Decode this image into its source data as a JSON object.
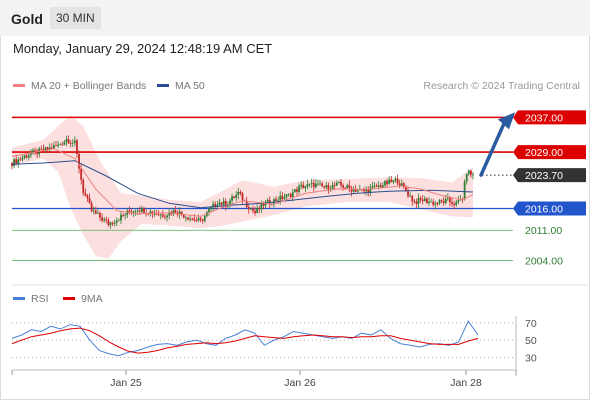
{
  "header": {
    "instrument": "Gold",
    "timeframe": "30 MIN"
  },
  "datetime": "Monday, January 29, 2024 12:48:19 AM CET",
  "credit": "Research © 2024 Trading Central",
  "legend_price": [
    {
      "label": "MA 20 + Bollinger Bands",
      "color": "#f08080"
    },
    {
      "label": "MA 50",
      "color": "#2a4d8f"
    }
  ],
  "legend_rsi": [
    {
      "label": "RSI",
      "color": "#4a7fd8"
    },
    {
      "label": "9MA",
      "color": "#e00000"
    }
  ],
  "colors": {
    "resistance": "#dd0000",
    "support_blue": "#2255cc",
    "support_green": "#4caf50",
    "current": "#333333",
    "candle_up": "#2e7d32",
    "candle_down": "#c62828",
    "bollinger_fill": "#fbdada",
    "arrow": "#2a5a9f"
  },
  "chart_data": [
    {
      "type": "line",
      "subtype": "candlestick",
      "title": "",
      "x_labels": [
        "Jan 25",
        "Jan 26",
        "Jan 28"
      ],
      "ylim": [
        2000,
        2041
      ],
      "levels": [
        {
          "value": 2037.0,
          "label": "2037.00",
          "kind": "resistance"
        },
        {
          "value": 2029.0,
          "label": "2029.00",
          "kind": "resistance"
        },
        {
          "value": 2023.7,
          "label": "2023.70",
          "kind": "current"
        },
        {
          "value": 2016.0,
          "label": "2016.00",
          "kind": "pivot"
        },
        {
          "value": 2011.0,
          "label": "2011.00",
          "kind": "support"
        },
        {
          "value": 2004.0,
          "label": "2004.00",
          "kind": "support"
        }
      ],
      "price_path": [
        [
          0,
          2026.5
        ],
        [
          8,
          2028.5
        ],
        [
          16,
          2029.5
        ],
        [
          22,
          2030.5
        ],
        [
          26,
          2032.0
        ],
        [
          30,
          2031.0
        ],
        [
          34,
          2020.0
        ],
        [
          38,
          2015.5
        ],
        [
          42,
          2014.0
        ],
        [
          46,
          2012.5
        ],
        [
          50,
          2013.5
        ],
        [
          55,
          2015.0
        ],
        [
          60,
          2016.0
        ],
        [
          66,
          2015.2
        ],
        [
          72,
          2014.5
        ],
        [
          78,
          2015.5
        ],
        [
          84,
          2014.0
        ],
        [
          90,
          2013.0
        ],
        [
          94,
          2015.5
        ],
        [
          98,
          2017.5
        ],
        [
          102,
          2017.0
        ],
        [
          108,
          2019.5
        ],
        [
          112,
          2017.0
        ],
        [
          116,
          2015.0
        ],
        [
          120,
          2017.0
        ],
        [
          126,
          2018.0
        ],
        [
          132,
          2019.0
        ],
        [
          138,
          2021.0
        ],
        [
          144,
          2021.5
        ],
        [
          150,
          2020.8
        ],
        [
          156,
          2021.5
        ],
        [
          162,
          2020.5
        ],
        [
          168,
          2020.0
        ],
        [
          174,
          2021.0
        ],
        [
          180,
          2022.0
        ],
        [
          184,
          2022.5
        ],
        [
          188,
          2020.0
        ],
        [
          192,
          2017.5
        ],
        [
          196,
          2018.0
        ],
        [
          202,
          2017.2
        ],
        [
          208,
          2017.8
        ],
        [
          212,
          2017.0
        ],
        [
          215,
          2018.5
        ],
        [
          217,
          2024.5
        ],
        [
          220,
          2023.7
        ]
      ],
      "ma20_path": [
        [
          0,
          2028.0
        ],
        [
          20,
          2029.8
        ],
        [
          30,
          2027.5
        ],
        [
          40,
          2020.5
        ],
        [
          50,
          2015.5
        ],
        [
          60,
          2014.8
        ],
        [
          75,
          2015.0
        ],
        [
          90,
          2014.2
        ],
        [
          100,
          2016.2
        ],
        [
          110,
          2017.8
        ],
        [
          125,
          2017.0
        ],
        [
          140,
          2019.5
        ],
        [
          155,
          2020.5
        ],
        [
          170,
          2020.4
        ],
        [
          185,
          2021.2
        ],
        [
          195,
          2020.5
        ],
        [
          205,
          2019.0
        ],
        [
          215,
          2018.0
        ],
        [
          220,
          2019.2
        ]
      ],
      "ma50_path": [
        [
          0,
          2026.2
        ],
        [
          15,
          2026.5
        ],
        [
          30,
          2027.0
        ],
        [
          45,
          2023.5
        ],
        [
          60,
          2019.5
        ],
        [
          75,
          2017.2
        ],
        [
          90,
          2016.2
        ],
        [
          105,
          2016.8
        ],
        [
          120,
          2017.2
        ],
        [
          135,
          2018.0
        ],
        [
          150,
          2018.8
        ],
        [
          165,
          2019.5
        ],
        [
          180,
          2020.0
        ],
        [
          200,
          2020.2
        ],
        [
          220,
          2019.8
        ]
      ],
      "bollinger_upper": [
        [
          0,
          2030.0
        ],
        [
          15,
          2031.8
        ],
        [
          22,
          2035.0
        ],
        [
          28,
          2037.5
        ],
        [
          34,
          2035.0
        ],
        [
          42,
          2027.0
        ],
        [
          52,
          2019.5
        ],
        [
          62,
          2019.0
        ],
        [
          76,
          2018.0
        ],
        [
          90,
          2017.5
        ],
        [
          100,
          2020.0
        ],
        [
          110,
          2022.5
        ],
        [
          125,
          2021.0
        ],
        [
          140,
          2022.5
        ],
        [
          160,
          2022.8
        ],
        [
          180,
          2023.2
        ],
        [
          195,
          2023.0
        ],
        [
          210,
          2022.0
        ],
        [
          220,
          2025.5
        ]
      ],
      "bollinger_lower": [
        [
          0,
          2026.0
        ],
        [
          15,
          2027.5
        ],
        [
          22,
          2024.5
        ],
        [
          28,
          2016.0
        ],
        [
          34,
          2010.0
        ],
        [
          40,
          2005.0
        ],
        [
          46,
          2004.5
        ],
        [
          52,
          2008.5
        ],
        [
          62,
          2012.5
        ],
        [
          76,
          2012.0
        ],
        [
          90,
          2011.5
        ],
        [
          100,
          2012.0
        ],
        [
          110,
          2013.0
        ],
        [
          125,
          2014.5
        ],
        [
          140,
          2016.5
        ],
        [
          160,
          2017.5
        ],
        [
          180,
          2017.5
        ],
        [
          195,
          2015.8
        ],
        [
          210,
          2014.2
        ],
        [
          220,
          2014.0
        ]
      ],
      "projection": {
        "from": 2023.7,
        "to": 2037.0
      }
    },
    {
      "type": "line",
      "title": "RSI",
      "ylim": [
        20,
        78
      ],
      "y_ticks": [
        70,
        50,
        30
      ],
      "series": [
        {
          "name": "RSI",
          "values": [
            52,
            56,
            62,
            60,
            66,
            63,
            68,
            66,
            50,
            38,
            34,
            32,
            36,
            38,
            42,
            45,
            46,
            44,
            48,
            50,
            46,
            44,
            52,
            56,
            62,
            58,
            44,
            50,
            54,
            60,
            58,
            56,
            54,
            52,
            54,
            52,
            58,
            56,
            62,
            52,
            46,
            44,
            42,
            45,
            46,
            44,
            48,
            72,
            56
          ]
        },
        {
          "name": "9MA",
          "values": [
            46,
            50,
            54,
            56,
            58,
            61,
            63,
            64,
            61,
            55,
            48,
            42,
            37,
            35,
            36,
            38,
            41,
            43,
            45,
            46,
            47,
            46,
            47,
            49,
            52,
            55,
            54,
            53,
            52,
            54,
            55,
            56,
            55,
            54,
            54,
            53,
            54,
            54,
            55,
            55,
            52,
            50,
            48,
            46,
            45,
            45,
            45,
            49,
            52
          ]
        }
      ]
    }
  ]
}
